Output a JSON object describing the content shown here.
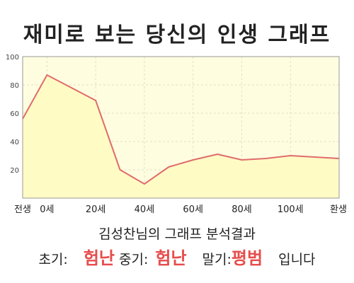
{
  "header": {
    "title": "재미로 보는 당신의 인생 그래프"
  },
  "chart_data": {
    "type": "area",
    "x": [
      -10,
      0,
      10,
      20,
      30,
      40,
      50,
      60,
      70,
      80,
      90,
      100,
      110,
      120
    ],
    "values": [
      56,
      87,
      78,
      69,
      20,
      10,
      22,
      27,
      31,
      27,
      28,
      30,
      29,
      28
    ],
    "ylim": [
      0,
      100
    ],
    "y_ticks": [
      20,
      40,
      60,
      80,
      100
    ],
    "x_tick_labels": [
      {
        "x": -10,
        "label": "전생"
      },
      {
        "x": 0,
        "label": "0세"
      },
      {
        "x": 20,
        "label": "20세"
      },
      {
        "x": 40,
        "label": "40세"
      },
      {
        "x": 60,
        "label": "60세"
      },
      {
        "x": 80,
        "label": "80세"
      },
      {
        "x": 100,
        "label": "100세"
      },
      {
        "x": 120,
        "label": "환생"
      }
    ],
    "grid": true,
    "line_color": "#e06c6c",
    "fill_color": "#fffbc4",
    "plot_bg": "#fffde0"
  },
  "summary": {
    "heading": "김성찬님의 그래프 분석결과",
    "early_label": "초기:",
    "early_value": "험난",
    "middle_label": "중기:",
    "middle_value": "험난",
    "late_label": "말기:",
    "late_value": "평범",
    "suffix": "입니다"
  }
}
